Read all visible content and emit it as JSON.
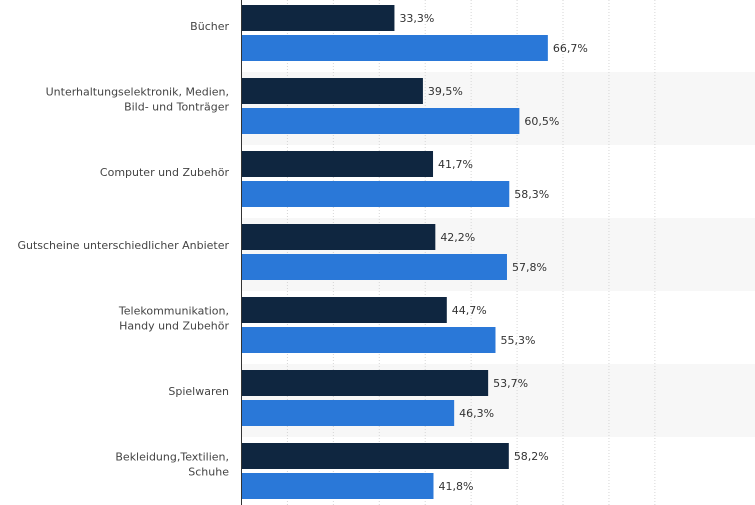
{
  "chart_data": {
    "type": "bar",
    "orientation": "horizontal",
    "categories": [
      [
        "Bücher"
      ],
      [
        "Unterhaltungselektronik, Medien,",
        "Bild- und Tonträger"
      ],
      [
        "Computer und Zubehör"
      ],
      [
        "Gutscheine unterschiedlicher Anbieter"
      ],
      [
        "Telekommunikation,",
        "Handy und Zubehör"
      ],
      [
        "Spielwaren"
      ],
      [
        "Bekleidung,Textilien,",
        "Schuhe"
      ]
    ],
    "series": [
      {
        "color": "#0f2640",
        "values": [
          33.3,
          39.5,
          41.7,
          42.2,
          44.7,
          53.7,
          58.2
        ],
        "labels": [
          "33,3%",
          "39,5%",
          "41,7%",
          "42,2%",
          "44,7%",
          "53,7%",
          "58,2%"
        ]
      },
      {
        "color": "#2a78d8",
        "values": [
          66.7,
          60.5,
          58.3,
          57.8,
          55.3,
          46.3,
          41.8
        ],
        "labels": [
          "66,7%",
          "60,5%",
          "58,3%",
          "57,8%",
          "55,3%",
          "46,3%",
          "41,8%"
        ]
      }
    ],
    "xlim": [
      0,
      90
    ],
    "grid": true,
    "gridlines_at": [
      10,
      20,
      30,
      40,
      50,
      60,
      70,
      80,
      90
    ],
    "legend": "none",
    "title": "",
    "xlabel": "",
    "ylabel": ""
  }
}
